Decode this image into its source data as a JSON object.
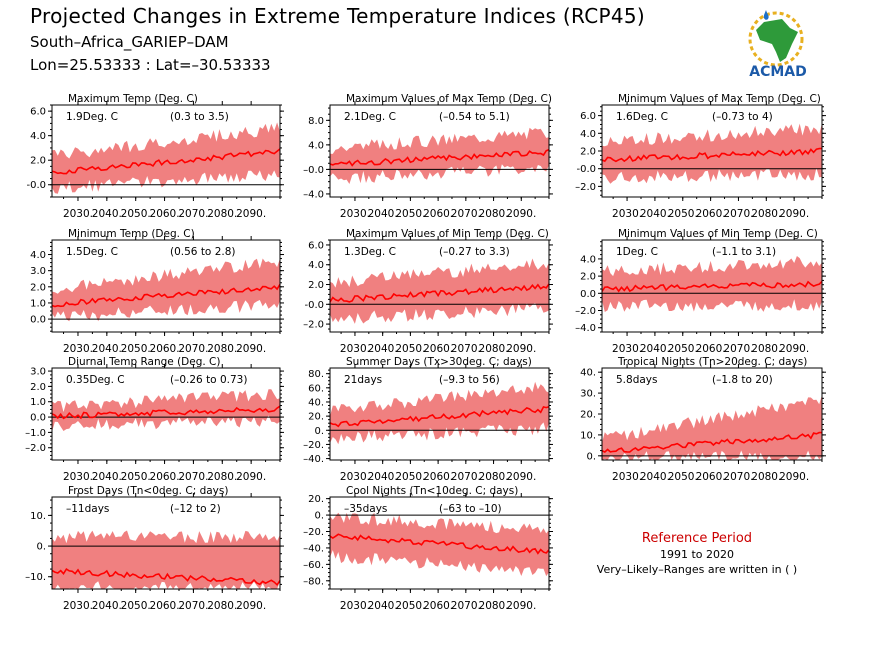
{
  "header": {
    "title": "Projected Changes in Extreme Temperature Indices (RCP45)",
    "location": "South–Africa_GARIEP–DAM",
    "coords": "Lon=25.53333 : Lat=–30.53333"
  },
  "logo": {
    "name": "ACMAD",
    "icon": "africa-map-logo"
  },
  "reference": {
    "title": "Reference Period",
    "years": "1991 to 2020",
    "note": "Very–Likely–Ranges are written in ( )"
  },
  "colors": {
    "band": "#f08080",
    "line": "#ff0000",
    "zero": "#000000"
  },
  "chart_data": [
    {
      "type": "area",
      "title": "Maximum Temp (Deg. C)",
      "value_label": "1.9Deg. C",
      "range_label": "(0.3 to 3.5)",
      "ylim": [
        -1,
        6.5
      ],
      "yticks": [
        "-0.0",
        "2.0",
        "4.0",
        "6.0"
      ],
      "ytick_values": [
        0,
        2,
        4,
        6
      ],
      "xticks": [
        "2030.",
        "2040.",
        "2050.",
        "2060.",
        "2070.",
        "2080.",
        "2090."
      ],
      "median_start": 1.0,
      "median_end": 2.7,
      "lower_start": -0.3,
      "lower_end": 0.9,
      "upper_start": 2.4,
      "upper_end": 4.6
    },
    {
      "type": "area",
      "title": "Maximum Values of Max Temp (Deg. C)",
      "value_label": "2.1Deg. C",
      "range_label": "(–0.54 to 5.1)",
      "ylim": [
        -4.5,
        10.5
      ],
      "yticks": [
        "–4.0",
        "–0.0",
        "4.0",
        "8.0"
      ],
      "ytick_values": [
        -4,
        0,
        4,
        8
      ],
      "xticks": [
        "2030.",
        "2040.",
        "2050.",
        "2060.",
        "2070.",
        "2080.",
        "2090."
      ],
      "median_start": 0.8,
      "median_end": 2.8,
      "lower_start": -1.5,
      "lower_end": 0.2,
      "upper_start": 3.5,
      "upper_end": 6.2
    },
    {
      "type": "area",
      "title": "Minimum Values of Max Temp (Deg. C)",
      "value_label": "1.6Deg. C",
      "range_label": "(–0.73 to 4)",
      "ylim": [
        -3.2,
        7.2
      ],
      "yticks": [
        "–2.0",
        "-0.0",
        "2.0",
        "4.0",
        "6.0"
      ],
      "ytick_values": [
        -2,
        0,
        2,
        4,
        6
      ],
      "xticks": [
        "2030.",
        "2040.",
        "2050.",
        "2060.",
        "2070.",
        "2080.",
        "2090."
      ],
      "median_start": 1.0,
      "median_end": 2.0,
      "lower_start": -1.0,
      "lower_end": -0.6,
      "upper_start": 3.0,
      "upper_end": 4.6
    },
    {
      "type": "area",
      "title": "Minimum Temp (Deg. C)",
      "value_label": "1.5Deg. C",
      "range_label": "(0.56 to 2.8)",
      "ylim": [
        -0.8,
        4.9
      ],
      "yticks": [
        "0.0",
        "1.0",
        "2.0",
        "3.0",
        "4.0"
      ],
      "ytick_values": [
        0,
        1,
        2,
        3,
        4
      ],
      "xticks": [
        "2030.",
        "2040.",
        "2050.",
        "2060.",
        "2070.",
        "2080.",
        "2090."
      ],
      "median_start": 0.9,
      "median_end": 2.0,
      "lower_start": 0.1,
      "lower_end": 0.9,
      "upper_start": 1.8,
      "upper_end": 3.6
    },
    {
      "type": "area",
      "title": "Maximum Values of Min Temp (Deg. C)",
      "value_label": "1.3Deg. C",
      "range_label": "(–0.27 to 3.3)",
      "ylim": [
        -2.8,
        6.5
      ],
      "yticks": [
        "–2.0",
        "-0.0",
        "2.0",
        "4.0",
        "6.0"
      ],
      "ytick_values": [
        -2,
        0,
        2,
        4,
        6
      ],
      "xticks": [
        "2030.",
        "2040.",
        "2050.",
        "2060.",
        "2070.",
        "2080.",
        "2090."
      ],
      "median_start": 0.4,
      "median_end": 1.8,
      "lower_start": -1.5,
      "lower_end": -0.4,
      "upper_start": 2.2,
      "upper_end": 4.2
    },
    {
      "type": "area",
      "title": "Minimum Values of Min Temp (Deg. C)",
      "value_label": "1Deg. C",
      "range_label": "(–1.1 to 3.1)",
      "ylim": [
        -4.5,
        6.2
      ],
      "yticks": [
        "–4.0",
        "–2.0",
        "0.0",
        "2.0",
        "4.0"
      ],
      "ytick_values": [
        -4,
        -2,
        0,
        2,
        4
      ],
      "xticks": [
        "2030.",
        "2040.",
        "2050.",
        "2060.",
        "2070.",
        "2080.",
        "2090."
      ],
      "median_start": 0.5,
      "median_end": 1.1,
      "lower_start": -1.5,
      "lower_end": -1.4,
      "upper_start": 2.5,
      "upper_end": 3.8
    },
    {
      "type": "area",
      "title": "Diurnal Temp Range (Deg. C)",
      "value_label": "0.35Deg. C",
      "range_label": "(–0.26 to 0.73)",
      "ylim": [
        -2.8,
        3.2
      ],
      "yticks": [
        "–2.0",
        "–1.0",
        "0.0",
        "1.0",
        "2.0",
        "3.0"
      ],
      "ytick_values": [
        -2,
        -1,
        0,
        1,
        2,
        3
      ],
      "xticks": [
        "2030.",
        "2040.",
        "2050.",
        "2060.",
        "2070.",
        "2080.",
        "2090."
      ],
      "median_start": 0.05,
      "median_end": 0.55,
      "lower_start": -0.6,
      "lower_end": -0.2,
      "upper_start": 0.7,
      "upper_end": 1.5
    },
    {
      "type": "area",
      "title": "Summer Days (Tx>30deg. C; days)",
      "value_label": "21days",
      "range_label": "(–9.3 to 56)",
      "ylim": [
        -42,
        88
      ],
      "yticks": [
        "–40.",
        "–20.",
        "0.",
        "20.",
        "40.",
        "60.",
        "80."
      ],
      "ytick_values": [
        -40,
        -20,
        0,
        20,
        40,
        60,
        80
      ],
      "xticks": [
        "2030.",
        "2040.",
        "2050.",
        "2060.",
        "2070.",
        "2080.",
        "2090."
      ],
      "median_start": 8,
      "median_end": 30,
      "lower_start": -12,
      "lower_end": 3,
      "upper_start": 28,
      "upper_end": 62
    },
    {
      "type": "area",
      "title": "Tropical Nights (Tn>20deg. C; days)",
      "value_label": "5.8days",
      "range_label": "(–1.8 to 20)",
      "ylim": [
        -2,
        42
      ],
      "yticks": [
        "0.",
        "10.",
        "20.",
        "30.",
        "40."
      ],
      "ytick_values": [
        0,
        10,
        20,
        30,
        40
      ],
      "xticks": [
        "2030.",
        "2040.",
        "2050.",
        "2060.",
        "2070.",
        "2080.",
        "2090."
      ],
      "median_start": 2,
      "median_end": 10,
      "lower_start": -1,
      "lower_end": 0,
      "upper_start": 8,
      "upper_end": 27
    },
    {
      "type": "area",
      "title": "Frost Days (Tn<0deg. C; days)",
      "value_label": "–11days",
      "range_label": "(–12 to 2)",
      "ylim": [
        -14,
        16
      ],
      "yticks": [
        "–10.",
        "0.",
        "10."
      ],
      "ytick_values": [
        -10,
        0,
        10
      ],
      "xticks": [
        "2030.",
        "2040.",
        "2050.",
        "2060.",
        "2070.",
        "2080.",
        "2090."
      ],
      "median_start": -8,
      "median_end": -12,
      "lower_start": -13.5,
      "lower_end": -13.5,
      "upper_start": 3,
      "upper_end": 3
    },
    {
      "type": "area",
      "title": "Cool Nights (Tn<10deg. C; days)",
      "value_label": "–35days",
      "range_label": "(–63 to –10)",
      "ylim": [
        -90,
        22
      ],
      "yticks": [
        "–80.",
        "–60.",
        "–40.",
        "–20.",
        "0.",
        "20."
      ],
      "ytick_values": [
        -80,
        -60,
        -40,
        -20,
        0,
        20
      ],
      "xticks": [
        "2030.",
        "2040.",
        "2050.",
        "2060.",
        "2070.",
        "2080.",
        "2090."
      ],
      "median_start": -25,
      "median_end": -45,
      "lower_start": -50,
      "lower_end": -70,
      "upper_start": -2,
      "upper_end": -18
    }
  ]
}
